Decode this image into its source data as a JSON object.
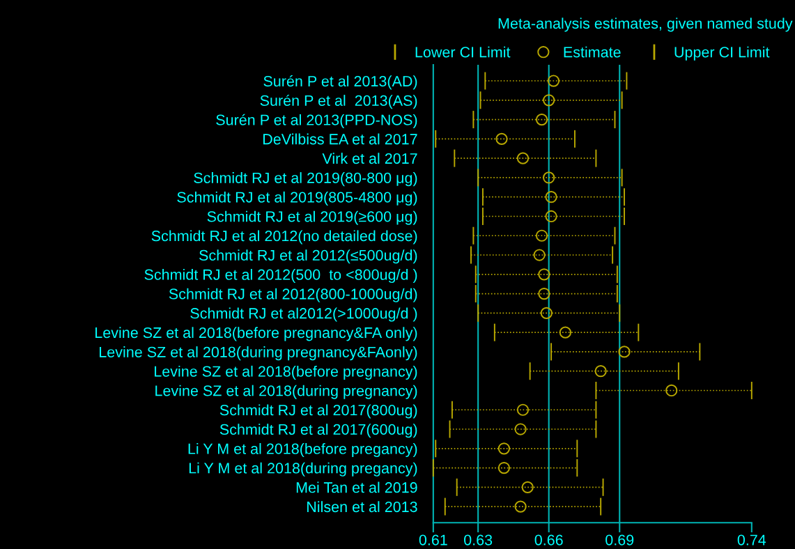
{
  "chart_data": {
    "type": "scatter",
    "orientation": "horizontal",
    "title": "Meta-analysis estimates, given named study",
    "categories": [
      "Surén P et al 2013(AD)",
      "Surén P et al  2013(AS)",
      "Surén P et al 2013(PPD-NOS)",
      "DeVilbiss EA et al 2017",
      "Virk et al 2017",
      "Schmidt RJ et al 2019(80-800 μg)",
      "Schmidt RJ et al 2019(805-4800 μg)",
      "Schmidt RJ et al 2019(≥600 μg)",
      "Schmidt RJ et al 2012(no detailed dose)",
      "Schmidt RJ et al 2012(≤500ug/d)",
      "Schmidt RJ et al 2012(500  to <800ug/d )",
      "Schmidt RJ et al 2012(800-1000ug/d)",
      "Schmidt RJ et al2012(>1000ug/d )",
      "Levine SZ et al 2018(before pregnancy&FA only)",
      "Levine SZ et al 2018(during pregnancy&FAonly)",
      "Levine SZ et al 2018(before pregnancy)",
      "Levine SZ et al 2018(during pregnancy)",
      "Schmidt RJ et al 2017(800ug)",
      "Schmidt RJ et al 2017(600ug)",
      "Li Y M et al 2018(before pregancy)",
      "Li Y M et al 2018(during pregancy)",
      "Mei Tan et al 2019",
      "Nilsen et al 2013"
    ],
    "series": [
      {
        "name": "Estimate",
        "color": "#b8a800",
        "marker": "circle",
        "line_style": "dotted",
        "values": [
          0.659,
          0.657,
          0.654,
          0.637,
          0.646,
          0.657,
          0.658,
          0.658,
          0.654,
          0.653,
          0.655,
          0.655,
          0.656,
          0.664,
          0.689,
          0.679,
          0.709,
          0.646,
          0.645,
          0.638,
          0.638,
          0.648,
          0.645
        ],
        "errors": [
          [
            0.63,
            0.69
          ],
          [
            0.628,
            0.688
          ],
          [
            0.625,
            0.685
          ],
          [
            0.609,
            0.668
          ],
          [
            0.617,
            0.677
          ],
          [
            0.627,
            0.688
          ],
          [
            0.629,
            0.689
          ],
          [
            0.629,
            0.689
          ],
          [
            0.625,
            0.685
          ],
          [
            0.624,
            0.684
          ],
          [
            0.626,
            0.686
          ],
          [
            0.626,
            0.686
          ],
          [
            0.627,
            0.687
          ],
          [
            0.634,
            0.695
          ],
          [
            0.658,
            0.721
          ],
          [
            0.649,
            0.712
          ],
          [
            0.677,
            0.743
          ],
          [
            0.616,
            0.677
          ],
          [
            0.615,
            0.677
          ],
          [
            0.609,
            0.669
          ],
          [
            0.608,
            0.669
          ],
          [
            0.618,
            0.68
          ],
          [
            0.613,
            0.679
          ]
        ]
      }
    ],
    "annotations": [
      "Lower CI Limit",
      "Upper CI Limit"
    ],
    "xlim": [
      0.608,
      0.743
    ],
    "xticks": [
      {
        "value": 0.608,
        "label": "0.61"
      },
      {
        "value": 0.627,
        "label": "0.63"
      },
      {
        "value": 0.657,
        "label": "0.66"
      },
      {
        "value": 0.687,
        "label": "0.69"
      },
      {
        "value": 0.743,
        "label": "0.74"
      }
    ],
    "ref_lines": [
      {
        "axis": "x",
        "value": 0.627,
        "color": "#00b4b4"
      },
      {
        "axis": "x",
        "value": 0.657,
        "color": "#00b4b4"
      },
      {
        "axis": "x",
        "value": 0.687,
        "color": "#00b4b4"
      }
    ],
    "legend": "top right",
    "grid": false
  }
}
